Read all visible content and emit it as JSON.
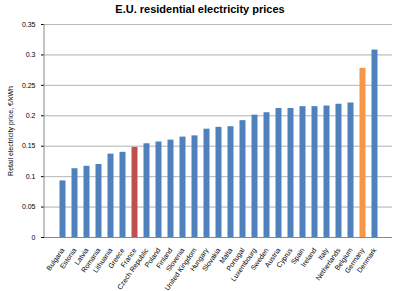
{
  "chart_data": {
    "type": "bar",
    "title": "E.U. residential electricity prices",
    "y_label": "Retail electricity price, €/kWh",
    "categories": [
      "Bulgaria",
      "Estonia",
      "Latvia",
      "Romania",
      "Lithuania",
      "Greece",
      "France",
      "Czech Republic",
      "Poland",
      "Finland",
      "Slovenia",
      "United Kingdom",
      "Hungary",
      "Slovakia",
      "Malta",
      "Portugal",
      "Luxembourg",
      "Sweden",
      "Austria",
      "Cyprus",
      "Spain",
      "Ireland",
      "Italy",
      "Netherlands",
      "Belgium",
      "Germany",
      "Denmark"
    ],
    "values": [
      0.093,
      0.113,
      0.117,
      0.12,
      0.137,
      0.14,
      0.148,
      0.154,
      0.157,
      0.16,
      0.165,
      0.167,
      0.178,
      0.181,
      0.182,
      0.192,
      0.201,
      0.205,
      0.212,
      0.212,
      0.215,
      0.215,
      0.216,
      0.219,
      0.221,
      0.278,
      0.308
    ],
    "colors": [
      "#4f81bd",
      "#4f81bd",
      "#4f81bd",
      "#4f81bd",
      "#4f81bd",
      "#4f81bd",
      "#c0504d",
      "#4f81bd",
      "#4f81bd",
      "#4f81bd",
      "#4f81bd",
      "#4f81bd",
      "#4f81bd",
      "#4f81bd",
      "#4f81bd",
      "#4f81bd",
      "#4f81bd",
      "#4f81bd",
      "#4f81bd",
      "#4f81bd",
      "#4f81bd",
      "#4f81bd",
      "#4f81bd",
      "#4f81bd",
      "#4f81bd",
      "#f79646",
      "#4f81bd"
    ],
    "ylim": [
      0,
      0.35
    ],
    "yticks": [
      0,
      0.05,
      0.1,
      0.15,
      0.2,
      0.25,
      0.3,
      0.35
    ],
    "grid": true
  }
}
